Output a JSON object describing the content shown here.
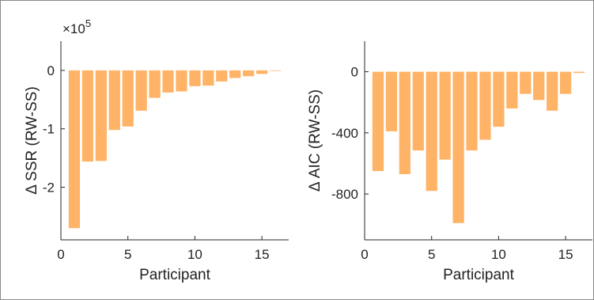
{
  "chart_data": [
    {
      "type": "bar",
      "xlabel": "Participant",
      "ylabel": "Δ SSR (RW-SS)",
      "y_multiplier": {
        "base": "×10",
        "exponent": "5"
      },
      "x": [
        1,
        2,
        3,
        4,
        5,
        6,
        7,
        8,
        9,
        10,
        11,
        12,
        13,
        14,
        15,
        16
      ],
      "values": [
        -2.7,
        -1.56,
        -1.55,
        -1.02,
        -0.96,
        -0.69,
        -0.47,
        -0.38,
        -0.36,
        -0.27,
        -0.26,
        -0.19,
        -0.13,
        -0.1,
        -0.06,
        -0.01
      ],
      "xlim": [
        0,
        17
      ],
      "ylim": [
        -2.9,
        0.5
      ],
      "xticks": [
        0,
        5,
        10,
        15
      ],
      "yticks": [
        0,
        -1,
        -2
      ],
      "ytick_labels": [
        "0",
        "-1",
        "-2"
      ],
      "bar_color": "#ffb366",
      "grid": false
    },
    {
      "type": "bar",
      "xlabel": "Participant",
      "ylabel": "Δ AIC (RW-SS)",
      "x": [
        1,
        2,
        3,
        4,
        5,
        6,
        7,
        8,
        9,
        10,
        11,
        12,
        13,
        14,
        15,
        16
      ],
      "values": [
        -650,
        -390,
        -670,
        -515,
        -780,
        -575,
        -990,
        -515,
        -445,
        -360,
        -240,
        -145,
        -185,
        -255,
        -145,
        -8
      ],
      "xlim": [
        0,
        17
      ],
      "ylim": [
        -1100,
        200
      ],
      "xticks": [
        0,
        5,
        10,
        15
      ],
      "yticks": [
        0,
        -400,
        -800
      ],
      "ytick_labels": [
        "0",
        "-400",
        "-800"
      ],
      "bar_color": "#ffb366",
      "grid": false
    }
  ]
}
